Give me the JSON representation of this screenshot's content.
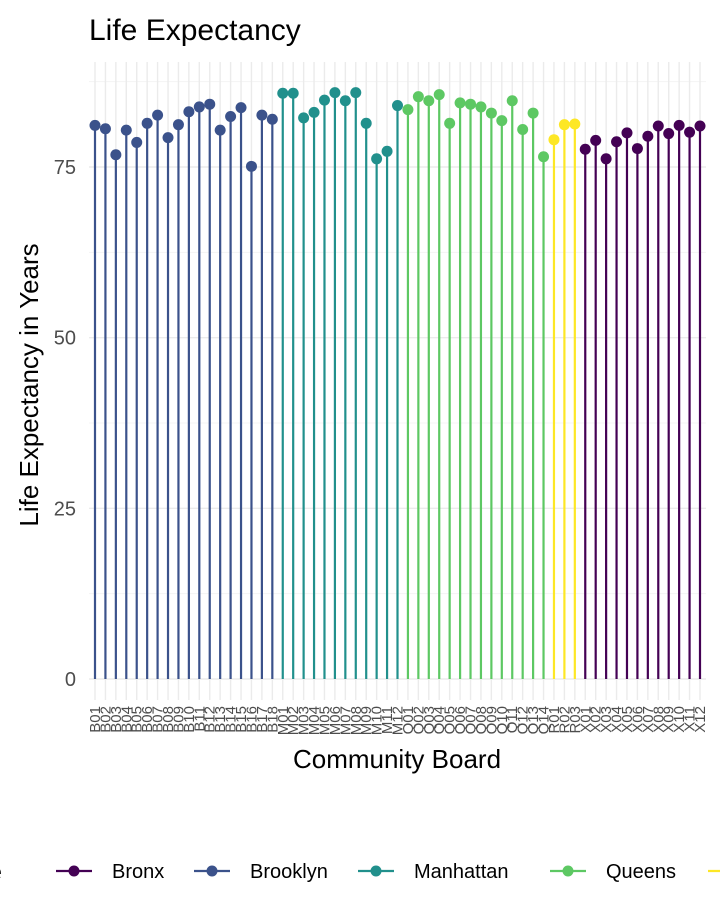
{
  "chart_data": {
    "type": "lollipop",
    "title": "Life Expectancy",
    "xlabel": "Community Board",
    "ylabel": "Life Expectancy in Years",
    "ylim": [
      0,
      88
    ],
    "yticks": [
      0,
      25,
      50,
      75
    ],
    "grid": true,
    "legend": {
      "title": "me",
      "position": "bottom",
      "entries": [
        {
          "name": "Bronx",
          "color": "#440154"
        },
        {
          "name": "Brooklyn",
          "color": "#3B528B"
        },
        {
          "name": "Manhattan",
          "color": "#21908C"
        },
        {
          "name": "Queens",
          "color": "#5DC863"
        },
        {
          "name": "",
          "color": "#FDE725"
        }
      ]
    },
    "series": [
      {
        "name": "Brooklyn",
        "color": "#3B528B",
        "categories": [
          "B01",
          "B02",
          "B03",
          "B04",
          "B05",
          "B06",
          "B07",
          "B08",
          "B09",
          "B10",
          "B11",
          "B12",
          "B13",
          "B14",
          "B15",
          "B16",
          "B17",
          "B18"
        ],
        "values": [
          81.1,
          80.6,
          76.8,
          80.4,
          78.6,
          81.4,
          82.6,
          79.3,
          81.2,
          83.1,
          83.8,
          84.2,
          80.4,
          82.4,
          83.7,
          75.1,
          82.6,
          82.0
        ]
      },
      {
        "name": "Manhattan",
        "color": "#21908C",
        "categories": [
          "M01",
          "M02",
          "M03",
          "M04",
          "M05",
          "M06",
          "M07",
          "M08",
          "M09",
          "M10",
          "M11",
          "M12"
        ],
        "values": [
          85.8,
          85.8,
          82.2,
          83.0,
          84.8,
          85.9,
          84.7,
          85.9,
          81.4,
          76.2,
          77.3,
          84.0
        ]
      },
      {
        "name": "Queens",
        "color": "#5DC863",
        "categories": [
          "Q01",
          "Q02",
          "Q03",
          "Q04",
          "Q05",
          "Q06",
          "Q07",
          "Q08",
          "Q09",
          "Q10",
          "Q11",
          "Q12",
          "Q13",
          "Q14"
        ],
        "values": [
          83.4,
          85.3,
          84.7,
          85.6,
          81.4,
          84.4,
          84.2,
          83.8,
          82.9,
          81.8,
          84.7,
          80.5,
          82.9,
          76.5
        ]
      },
      {
        "name": "",
        "color": "#FDE725",
        "categories": [
          "R01",
          "R02",
          "R03"
        ],
        "values": [
          79.0,
          81.2,
          81.3
        ]
      },
      {
        "name": "Bronx",
        "color": "#440154",
        "categories": [
          "X01",
          "X02",
          "X03",
          "X04",
          "X05",
          "X06",
          "X07",
          "X08",
          "X09",
          "X10",
          "X11",
          "X12"
        ],
        "values": [
          77.6,
          78.9,
          76.2,
          78.7,
          80.0,
          77.7,
          79.5,
          81.0,
          79.9,
          81.1,
          80.1,
          81.0
        ]
      }
    ]
  }
}
